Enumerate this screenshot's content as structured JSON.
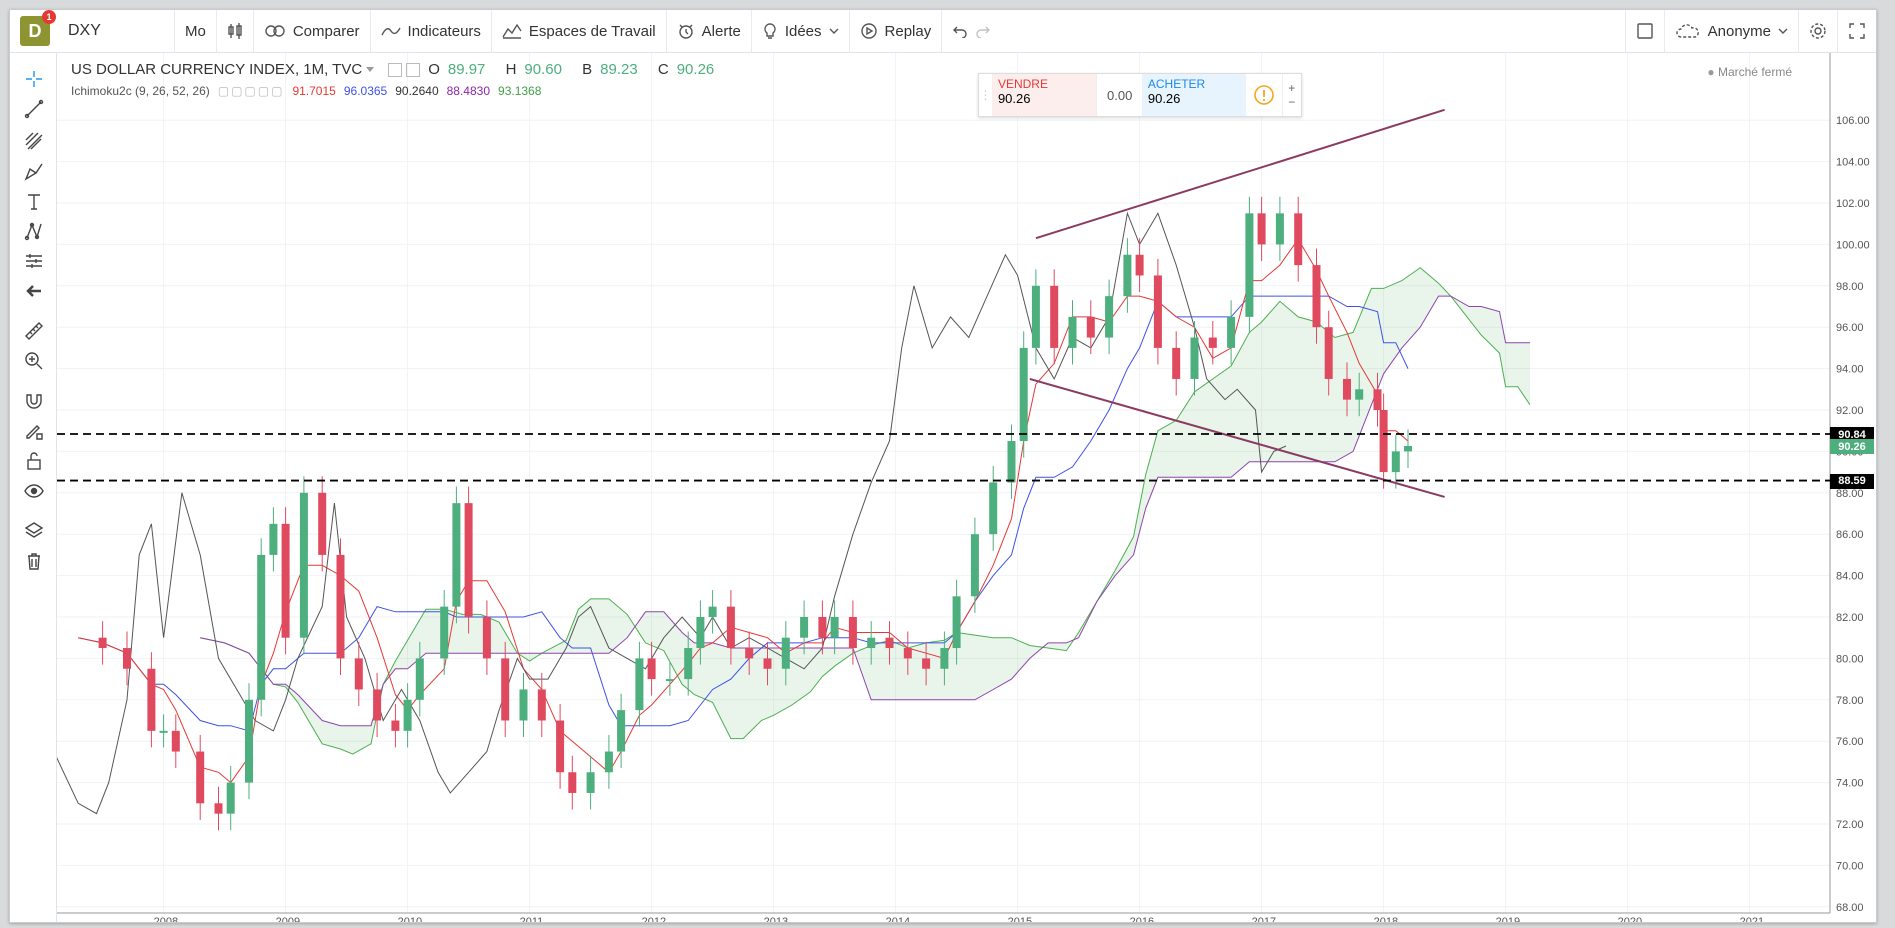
{
  "toolbar": {
    "logo_letter": "D",
    "logo_badge": "1",
    "symbol": "DXY",
    "interval": "Mo",
    "compare": "Comparer",
    "indicators": "Indicateurs",
    "workspaces": "Espaces de Travail",
    "alert": "Alerte",
    "ideas": "Idées",
    "replay": "Replay",
    "user": "Anonyme"
  },
  "legend": {
    "title": "US DOLLAR CURRENCY INDEX, 1M, TVC",
    "open_label": "O",
    "open": "89.97",
    "high_label": "H",
    "high": "90.60",
    "low_label": "B",
    "low": "89.23",
    "close_label": "C",
    "close": "90.26",
    "indicator": "Ichimoku2c (9, 26, 52, 26)",
    "ind_values": [
      "91.7015",
      "96.0365",
      "90.2640",
      "88.4830",
      "93.1368"
    ]
  },
  "trade": {
    "sell_label": "VENDRE",
    "sell_price": "90.26",
    "spread": "0.00",
    "buy_label": "ACHETER",
    "buy_price": "90.26"
  },
  "market_status": "Marché fermé",
  "price_tags": [
    {
      "value": "90.84",
      "color": "#000000"
    },
    {
      "value": "90.26",
      "color": "#4caf7d"
    },
    {
      "value": "88.59",
      "color": "#000000"
    }
  ],
  "colors": {
    "up": "#4caf7d",
    "down": "#e04a5f",
    "tenkan": "#e53935",
    "kijun": "#3f51e5",
    "chikou": "#555555",
    "spanA": "#4caf50",
    "spanB": "#8e44ad",
    "trend": "#8b3a62"
  },
  "chart_data": {
    "type": "candlestick",
    "y_ticks": [
      "106.00",
      "104.00",
      "102.00",
      "100.00",
      "98.00",
      "96.00",
      "94.00",
      "92.00",
      "90.00",
      "88.00",
      "86.00",
      "84.00",
      "82.00",
      "80.00",
      "78.00",
      "76.00",
      "74.00",
      "72.00",
      "70.00",
      "68.00"
    ],
    "x_ticks": [
      "2008",
      "2009",
      "2010",
      "2011",
      "2012",
      "2013",
      "2014",
      "2015",
      "2016",
      "2017",
      "2018",
      "2019",
      "2020",
      "2021"
    ],
    "horizontal_lines": [
      90.84,
      88.59
    ],
    "close_series": [
      [
        2007.3,
        81.0
      ],
      [
        2007.5,
        80.5
      ],
      [
        2007.7,
        79.5
      ],
      [
        2007.9,
        76.5
      ],
      [
        2008.0,
        76.5
      ],
      [
        2008.1,
        75.5
      ],
      [
        2008.3,
        73.0
      ],
      [
        2008.45,
        72.5
      ],
      [
        2008.55,
        74.0
      ],
      [
        2008.7,
        78.0
      ],
      [
        2008.8,
        85.0
      ],
      [
        2008.9,
        86.5
      ],
      [
        2009.0,
        81.0
      ],
      [
        2009.15,
        88.0
      ],
      [
        2009.3,
        85.0
      ],
      [
        2009.45,
        80.0
      ],
      [
        2009.6,
        78.5
      ],
      [
        2009.75,
        77.0
      ],
      [
        2009.9,
        76.5
      ],
      [
        2010.0,
        78.0
      ],
      [
        2010.1,
        80.0
      ],
      [
        2010.3,
        82.5
      ],
      [
        2010.4,
        87.5
      ],
      [
        2010.5,
        82.0
      ],
      [
        2010.65,
        80.0
      ],
      [
        2010.8,
        77.0
      ],
      [
        2010.95,
        78.5
      ],
      [
        2011.1,
        77.0
      ],
      [
        2011.25,
        74.5
      ],
      [
        2011.35,
        73.5
      ],
      [
        2011.5,
        74.5
      ],
      [
        2011.65,
        75.5
      ],
      [
        2011.75,
        77.5
      ],
      [
        2011.9,
        80.0
      ],
      [
        2012.0,
        79.0
      ],
      [
        2012.15,
        79.0
      ],
      [
        2012.3,
        80.5
      ],
      [
        2012.4,
        82.0
      ],
      [
        2012.5,
        82.5
      ],
      [
        2012.65,
        80.5
      ],
      [
        2012.8,
        80.0
      ],
      [
        2012.95,
        79.5
      ],
      [
        2013.1,
        81.0
      ],
      [
        2013.25,
        82.0
      ],
      [
        2013.4,
        81.0
      ],
      [
        2013.5,
        82.0
      ],
      [
        2013.65,
        80.5
      ],
      [
        2013.8,
        81.0
      ],
      [
        2013.95,
        80.5
      ],
      [
        2014.1,
        80.0
      ],
      [
        2014.25,
        79.5
      ],
      [
        2014.4,
        80.5
      ],
      [
        2014.5,
        83.0
      ],
      [
        2014.65,
        86.0
      ],
      [
        2014.8,
        88.5
      ],
      [
        2014.95,
        90.5
      ],
      [
        2015.05,
        95.0
      ],
      [
        2015.15,
        98.0
      ],
      [
        2015.3,
        95.0
      ],
      [
        2015.45,
        96.5
      ],
      [
        2015.6,
        95.5
      ],
      [
        2015.75,
        97.5
      ],
      [
        2015.9,
        99.5
      ],
      [
        2016.0,
        98.5
      ],
      [
        2016.15,
        95.0
      ],
      [
        2016.3,
        93.5
      ],
      [
        2016.45,
        95.5
      ],
      [
        2016.6,
        95.0
      ],
      [
        2016.75,
        96.5
      ],
      [
        2016.9,
        101.5
      ],
      [
        2017.0,
        100.0
      ],
      [
        2017.15,
        101.5
      ],
      [
        2017.3,
        99.0
      ],
      [
        2017.45,
        96.0
      ],
      [
        2017.55,
        93.5
      ],
      [
        2017.7,
        92.5
      ],
      [
        2017.8,
        93.0
      ],
      [
        2017.95,
        92.0
      ],
      [
        2018.0,
        89.0
      ],
      [
        2018.1,
        90.0
      ],
      [
        2018.2,
        90.26
      ]
    ],
    "ichimoku_latest": {
      "tenkan": 91.7015,
      "kijun": 96.0365,
      "chikou": 90.264,
      "spanA": 88.483,
      "spanB": 93.1368
    }
  }
}
